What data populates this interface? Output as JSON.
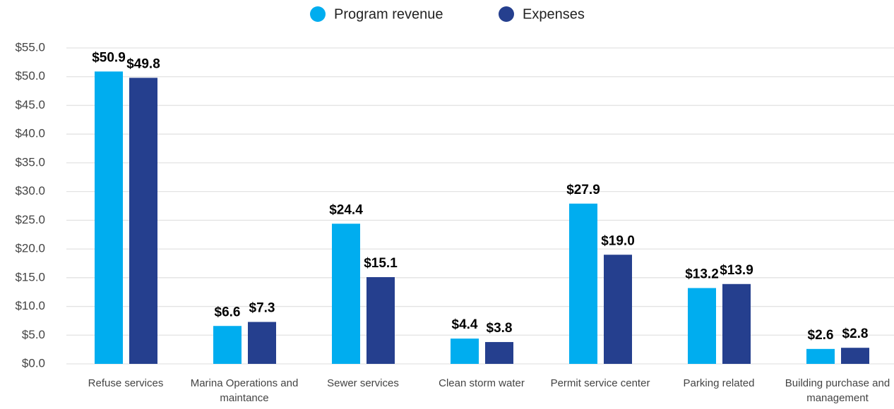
{
  "chart_data": {
    "type": "bar",
    "categories": [
      "Refuse services",
      "Marina Operations and maintance",
      "Sewer services",
      "Clean storm water",
      "Permit service center",
      "Parking related",
      "Building purchase and management"
    ],
    "series": [
      {
        "name": "Program revenue",
        "color": "#00adef",
        "values": [
          50.9,
          6.6,
          24.4,
          4.4,
          27.9,
          13.2,
          2.6
        ],
        "value_labels": [
          "$50.9",
          "$6.6",
          "$24.4",
          "$4.4",
          "$27.9",
          "$13.2",
          "$2.6"
        ]
      },
      {
        "name": "Expenses",
        "color": "#253f8e",
        "values": [
          49.8,
          7.3,
          15.1,
          3.8,
          19.0,
          13.9,
          2.8
        ],
        "value_labels": [
          "$49.8",
          "$7.3",
          "$15.1",
          "$3.8",
          "$19.0",
          "$13.9",
          "$2.8"
        ]
      }
    ],
    "ylim": [
      0,
      55
    ],
    "yticks": [
      {
        "value": 0,
        "label": "$0.0"
      },
      {
        "value": 5,
        "label": "$5.0"
      },
      {
        "value": 10,
        "label": "$10.0"
      },
      {
        "value": 15,
        "label": "$15.0"
      },
      {
        "value": 20,
        "label": "$20.0"
      },
      {
        "value": 25,
        "label": "$25.0"
      },
      {
        "value": 30,
        "label": "$30.0"
      },
      {
        "value": 35,
        "label": "$35.0"
      },
      {
        "value": 40,
        "label": "$40.0"
      },
      {
        "value": 45,
        "label": "$45.0"
      },
      {
        "value": 50,
        "label": "$50.0"
      },
      {
        "value": 55,
        "label": "$55.0"
      }
    ],
    "grid": true,
    "legend": "top"
  }
}
